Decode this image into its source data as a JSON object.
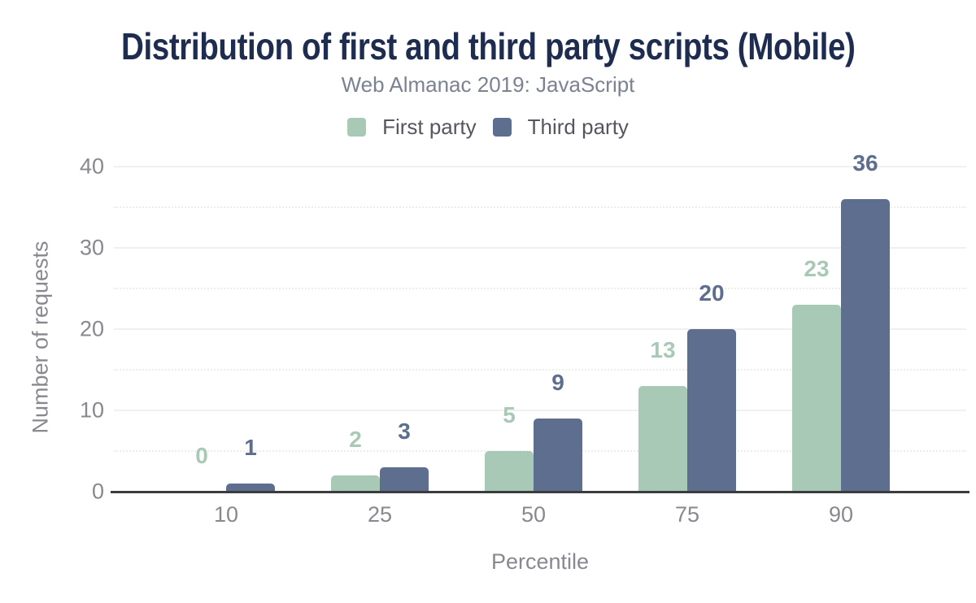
{
  "chart_data": {
    "type": "bar",
    "title": "Distribution of first and third party scripts (Mobile)",
    "subtitle": "Web Almanac 2019: JavaScript",
    "xlabel": "Percentile",
    "ylabel": "Number of requests",
    "categories": [
      "10",
      "25",
      "50",
      "75",
      "90"
    ],
    "series": [
      {
        "name": "First party",
        "color": "#a8c9b6",
        "values": [
          0,
          2,
          5,
          13,
          23
        ]
      },
      {
        "name": "Third party",
        "color": "#5d6e8e",
        "values": [
          1,
          3,
          9,
          20,
          36
        ]
      }
    ],
    "ylim": [
      0,
      40
    ],
    "y_major_ticks": [
      0,
      10,
      20,
      30,
      40
    ],
    "y_minor_ticks": [
      5,
      15,
      25,
      35
    ],
    "grid": "horizontal; major solid, minor dotted",
    "legend_position": "top",
    "annotations": "series values shown above each bar"
  },
  "colors": {
    "background": "#ffffff",
    "title": "#1e2c50",
    "subtitle": "#7b8290",
    "legend_text": "#54575e",
    "axis_text": "#87898f",
    "grid_major": "#f0f0f0",
    "grid_minor": "#ededed",
    "axis_line": "#3a3c3e",
    "first_party": "#a8c9b6",
    "third_party": "#5d6e8e"
  }
}
